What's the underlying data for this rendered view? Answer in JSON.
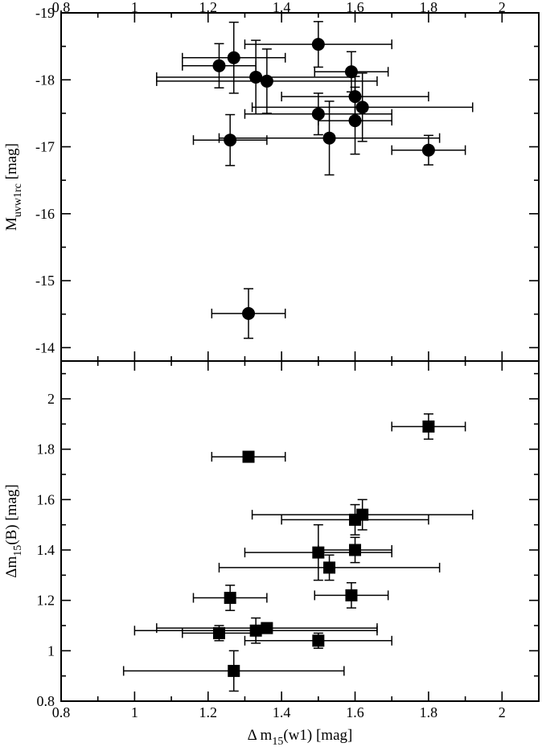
{
  "chart_data": [
    {
      "type": "scatter",
      "panel": "top",
      "marker": "circle",
      "xlim": [
        0.8,
        2.1
      ],
      "ylim": [
        -13.8,
        -19.0
      ],
      "y_inverted": true,
      "x_ticks": [
        0.8,
        1,
        1.2,
        1.4,
        1.6,
        1.8,
        2
      ],
      "x_tick_labels": [
        "0.8",
        "1",
        "1.2",
        "1.4",
        "1.6",
        "1.8",
        "2"
      ],
      "y_ticks": [
        -19,
        -18,
        -17,
        -16,
        -15,
        -14
      ],
      "y_tick_labels": [
        "-19",
        "-18",
        "-17",
        "-16",
        "-15",
        "-14"
      ],
      "ylabel_main": "M",
      "ylabel_sub": "uvw1rc",
      "ylabel_tail": " [mag]",
      "points": [
        {
          "x": 1.23,
          "y": -18.21,
          "xerr": 0.1,
          "yerr": 0.33
        },
        {
          "x": 1.27,
          "y": -18.33,
          "xerr": 0.14,
          "yerr": 0.53
        },
        {
          "x": 1.33,
          "y": -18.04,
          "xerr": 0.27,
          "yerr": 0.55
        },
        {
          "x": 1.36,
          "y": -17.98,
          "xerr": 0.3,
          "yerr": 0.48
        },
        {
          "x": 1.5,
          "y": -18.53,
          "xerr": 0.2,
          "yerr": 0.34
        },
        {
          "x": 1.59,
          "y": -18.12,
          "xerr": 0.1,
          "yerr": 0.3
        },
        {
          "x": 1.6,
          "y": -17.75,
          "xerr": 0.2,
          "yerr": 0.3
        },
        {
          "x": 1.62,
          "y": -17.59,
          "xerr": 0.3,
          "yerr": 0.51
        },
        {
          "x": 1.5,
          "y": -17.49,
          "xerr": 0.2,
          "yerr": 0.31
        },
        {
          "x": 1.6,
          "y": -17.39,
          "xerr": 0.1,
          "yerr": 0.5
        },
        {
          "x": 1.26,
          "y": -17.1,
          "xerr": 0.1,
          "yerr": 0.38
        },
        {
          "x": 1.53,
          "y": -17.13,
          "xerr": 0.3,
          "yerr": 0.55
        },
        {
          "x": 1.8,
          "y": -16.95,
          "xerr": 0.1,
          "yerr": 0.22
        },
        {
          "x": 1.31,
          "y": -14.51,
          "xerr": 0.1,
          "yerr": 0.37
        }
      ]
    },
    {
      "type": "scatter",
      "panel": "bottom",
      "marker": "square",
      "xlim": [
        0.8,
        2.1
      ],
      "ylim": [
        0.8,
        2.15
      ],
      "x_ticks": [
        0.8,
        1,
        1.2,
        1.4,
        1.6,
        1.8,
        2
      ],
      "x_tick_labels": [
        "0.8",
        "1",
        "1.2",
        "1.4",
        "1.6",
        "1.8",
        "2"
      ],
      "y_ticks": [
        0.8,
        1,
        1.2,
        1.4,
        1.6,
        1.8,
        2
      ],
      "y_tick_labels": [
        "0.8",
        "1",
        "1.2",
        "1.4",
        "1.6",
        "1.8",
        "2"
      ],
      "ylabel_main": "Δm",
      "ylabel_sub": "15",
      "ylabel_tail": "(B) [mag]",
      "xlabel_main": "Δ m",
      "xlabel_sub": "15",
      "xlabel_tail": "(w1) [mag]",
      "points": [
        {
          "x": 1.8,
          "y": 1.89,
          "xerr": 0.1,
          "yerr": 0.05
        },
        {
          "x": 1.31,
          "y": 1.77,
          "xerr": 0.1,
          "yerr": 0.0
        },
        {
          "x": 1.62,
          "y": 1.54,
          "xerr": 0.3,
          "yerr": 0.06
        },
        {
          "x": 1.6,
          "y": 1.52,
          "xerr": 0.2,
          "yerr": 0.06
        },
        {
          "x": 1.6,
          "y": 1.4,
          "xerr": 0.1,
          "yerr": 0.05
        },
        {
          "x": 1.5,
          "y": 1.39,
          "xerr": 0.2,
          "yerr": 0.11
        },
        {
          "x": 1.53,
          "y": 1.33,
          "xerr": 0.3,
          "yerr": 0.05
        },
        {
          "x": 1.59,
          "y": 1.22,
          "xerr": 0.1,
          "yerr": 0.05
        },
        {
          "x": 1.26,
          "y": 1.21,
          "xerr": 0.1,
          "yerr": 0.05
        },
        {
          "x": 1.36,
          "y": 1.09,
          "xerr": 0.3,
          "yerr": 0.02
        },
        {
          "x": 1.33,
          "y": 1.08,
          "xerr": 0.33,
          "yerr": 0.05
        },
        {
          "x": 1.23,
          "y": 1.07,
          "xerr": 0.1,
          "yerr": 0.03
        },
        {
          "x": 1.5,
          "y": 1.04,
          "xerr": 0.2,
          "yerr": 0.03
        },
        {
          "x": 1.27,
          "y": 0.92,
          "xerr": 0.3,
          "yerr": 0.08
        }
      ]
    }
  ]
}
